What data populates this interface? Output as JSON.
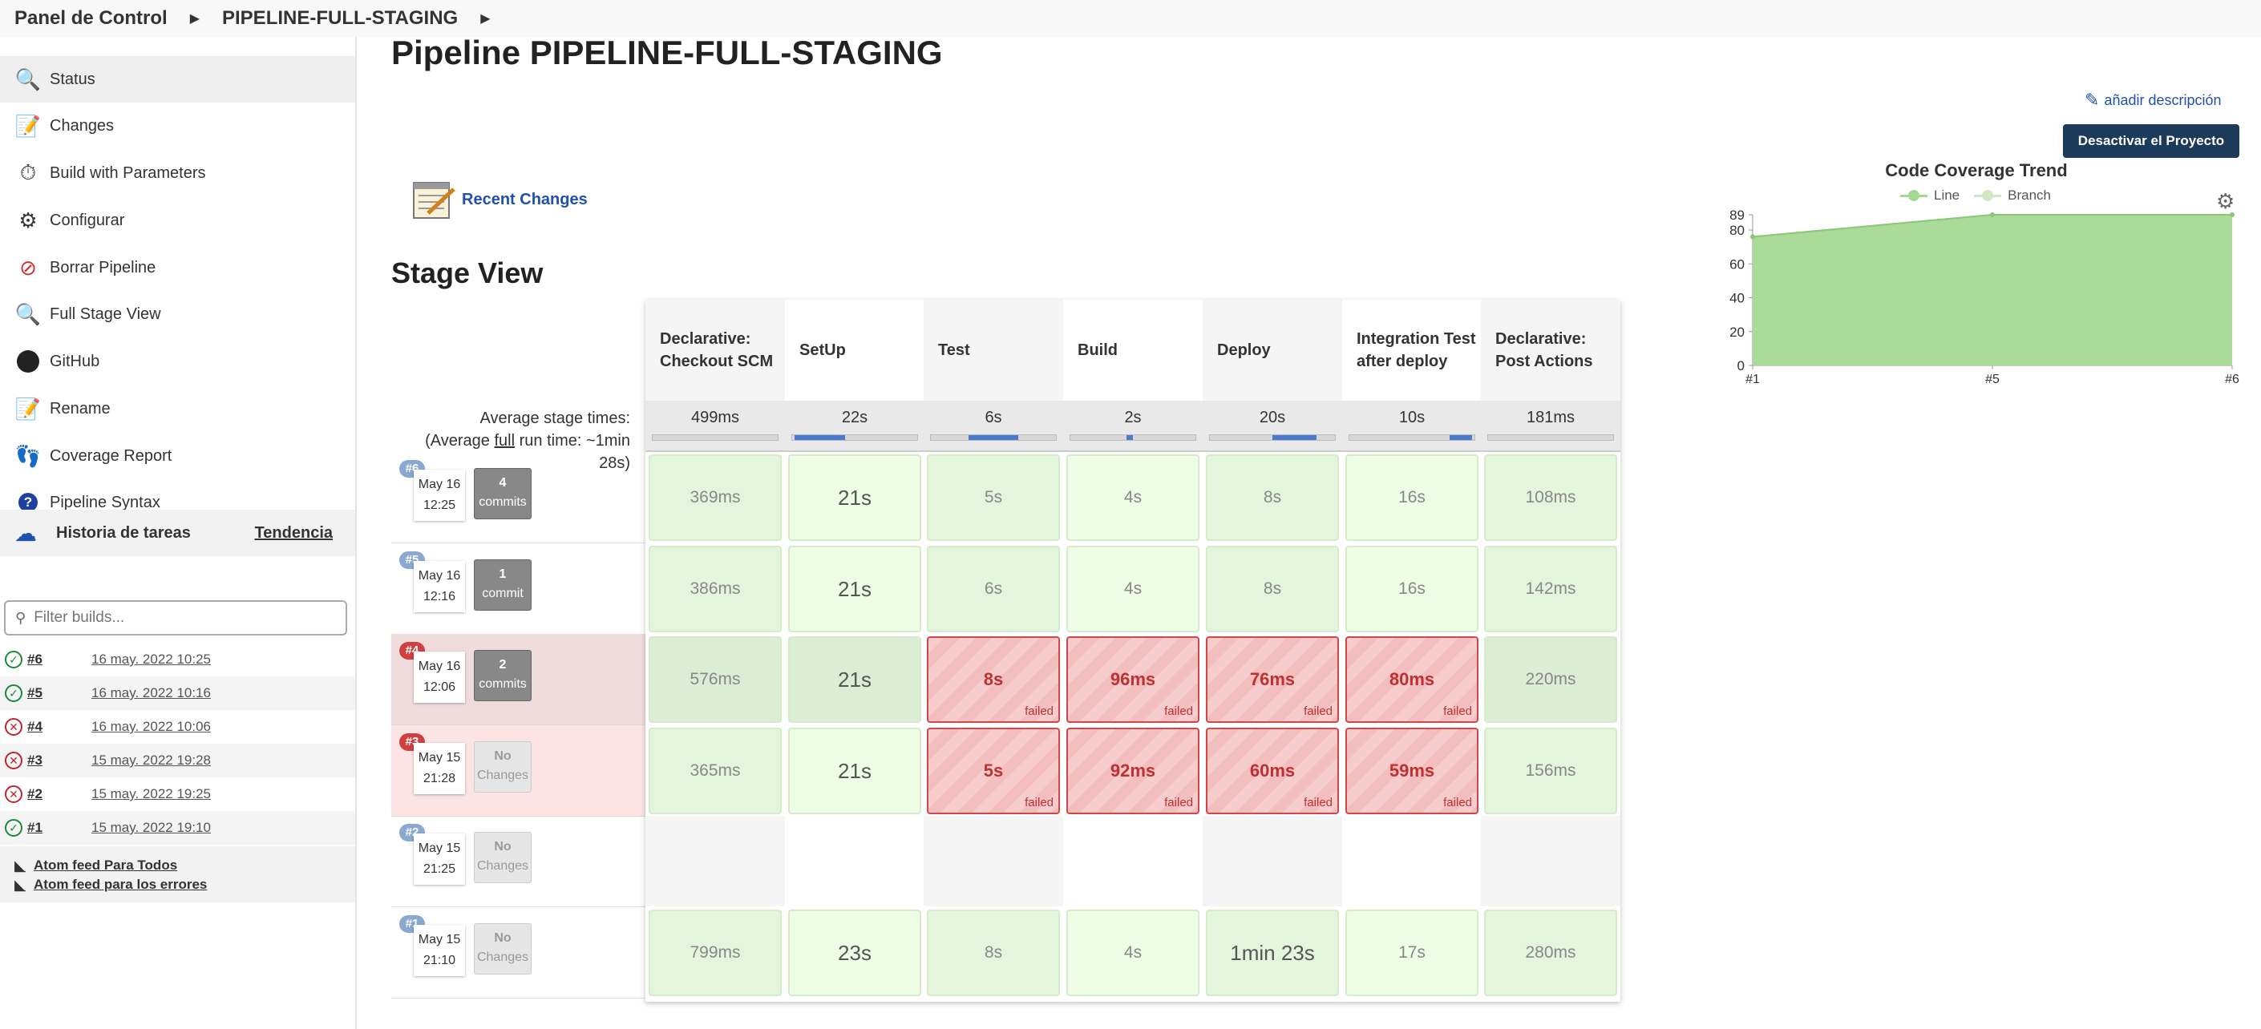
{
  "breadcrumb": {
    "home": "Panel de Control",
    "job": "PIPELINE-FULL-STAGING"
  },
  "sidebar": {
    "items": [
      {
        "label": "Status",
        "icon": "magnifier-icon"
      },
      {
        "label": "Changes",
        "icon": "notepad-icon"
      },
      {
        "label": "Build with Parameters",
        "icon": "clock-play-icon"
      },
      {
        "label": "Configurar",
        "icon": "gear-icon"
      },
      {
        "label": "Borrar Pipeline",
        "icon": "no-entry-icon"
      },
      {
        "label": "Full Stage View",
        "icon": "magnifier-icon"
      },
      {
        "label": "GitHub",
        "icon": "github-icon"
      },
      {
        "label": "Rename",
        "icon": "notepad-icon"
      },
      {
        "label": "Coverage Report",
        "icon": "footprints-icon"
      },
      {
        "label": "Pipeline Syntax",
        "icon": "help-icon"
      }
    ],
    "history": {
      "title": "Historia de tareas",
      "trend": "Tendencia",
      "filter_placeholder": "Filter builds...",
      "builds": [
        {
          "num": "#6",
          "date": "16 may. 2022 10:25",
          "status": "success"
        },
        {
          "num": "#5",
          "date": "16 may. 2022 10:16",
          "status": "success"
        },
        {
          "num": "#4",
          "date": "16 may. 2022 10:06",
          "status": "failed"
        },
        {
          "num": "#3",
          "date": "15 may. 2022 19:28",
          "status": "failed"
        },
        {
          "num": "#2",
          "date": "15 may. 2022 19:25",
          "status": "failed"
        },
        {
          "num": "#1",
          "date": "15 may. 2022 19:10",
          "status": "success"
        }
      ]
    },
    "feeds": {
      "all": "Atom feed Para Todos",
      "errors": "Atom feed para los errores"
    }
  },
  "main": {
    "title": "Pipeline PIPELINE-FULL-STAGING",
    "add_description": "añadir descripción",
    "deactivate": "Desactivar el Proyecto",
    "recent_changes": "Recent Changes",
    "stage_view_title": "Stage View",
    "avg_label_1": "Average stage times:",
    "avg_label_2a": "(Average ",
    "avg_label_2b": "full",
    "avg_label_2c": " run time: ~1min 28s)"
  },
  "stages": {
    "headers": [
      "Declarative: Checkout SCM",
      "SetUp",
      "Test",
      "Build",
      "Deploy",
      "Integration Test after deploy",
      "Declarative: Post Actions"
    ],
    "averages": [
      "499ms",
      "22s",
      "6s",
      "2s",
      "20s",
      "10s",
      "181ms"
    ],
    "progress": [
      [
        0,
        0
      ],
      [
        0.02,
        0.4
      ],
      [
        0.3,
        0.4
      ],
      [
        0.45,
        0.05
      ],
      [
        0.5,
        0.35
      ],
      [
        0.8,
        0.18
      ],
      [
        0,
        0
      ]
    ],
    "failed_tag": "failed",
    "builds": [
      {
        "badge": "#6",
        "month": "May 16",
        "time": "12:25",
        "commits_n": "4",
        "commits_label": "commits",
        "cells": [
          "369ms",
          "21s",
          "5s",
          "4s",
          "8s",
          "16s",
          "108ms"
        ],
        "states": [
          "ok",
          "ok",
          "ok",
          "ok",
          "ok",
          "ok",
          "ok"
        ]
      },
      {
        "badge": "#5",
        "month": "May 16",
        "time": "12:16",
        "commits_n": "1",
        "commits_label": "commit",
        "cells": [
          "386ms",
          "21s",
          "6s",
          "4s",
          "8s",
          "16s",
          "142ms"
        ],
        "states": [
          "ok",
          "ok",
          "ok",
          "ok",
          "ok",
          "ok",
          "ok"
        ]
      },
      {
        "badge": "#4",
        "month": "May 16",
        "time": "12:06",
        "commits_n": "2",
        "commits_label": "commits",
        "cells": [
          "576ms",
          "21s",
          "8s",
          "96ms",
          "76ms",
          "80ms",
          "220ms"
        ],
        "states": [
          "ok",
          "ok",
          "fail",
          "fail",
          "fail",
          "fail",
          "ok"
        ]
      },
      {
        "badge": "#3",
        "month": "May 15",
        "time": "21:28",
        "commits_n": "No",
        "commits_label": "Changes",
        "cells": [
          "365ms",
          "21s",
          "5s",
          "92ms",
          "60ms",
          "59ms",
          "156ms"
        ],
        "states": [
          "ok",
          "ok",
          "fail",
          "fail",
          "fail",
          "fail",
          "ok"
        ]
      },
      {
        "badge": "#2",
        "month": "May 15",
        "time": "21:25",
        "commits_n": "No",
        "commits_label": "Changes",
        "cells": [
          "",
          "",
          "",
          "",
          "",
          "",
          ""
        ],
        "states": [
          "empty",
          "empty",
          "empty",
          "empty",
          "empty",
          "empty",
          "empty"
        ]
      },
      {
        "badge": "#1",
        "month": "May 15",
        "time": "21:10",
        "commits_n": "No",
        "commits_label": "Changes",
        "cells": [
          "799ms",
          "23s",
          "8s",
          "4s",
          "1min 23s",
          "17s",
          "280ms"
        ],
        "states": [
          "ok",
          "ok",
          "ok",
          "ok",
          "ok",
          "ok",
          "ok"
        ]
      }
    ]
  },
  "chart_data": {
    "type": "area",
    "title": "Code Coverage Trend",
    "series": [
      {
        "name": "Line",
        "color": "#a3d88f",
        "values": [
          76,
          89,
          89
        ]
      },
      {
        "name": "Branch",
        "color": "#cfe9c4",
        "values": [
          76,
          89,
          89
        ]
      }
    ],
    "categories": [
      "#1",
      "#5",
      "#6"
    ],
    "yticks": [
      "0",
      "20",
      "40",
      "60",
      "80",
      "89"
    ],
    "ylim": [
      0,
      89
    ]
  }
}
